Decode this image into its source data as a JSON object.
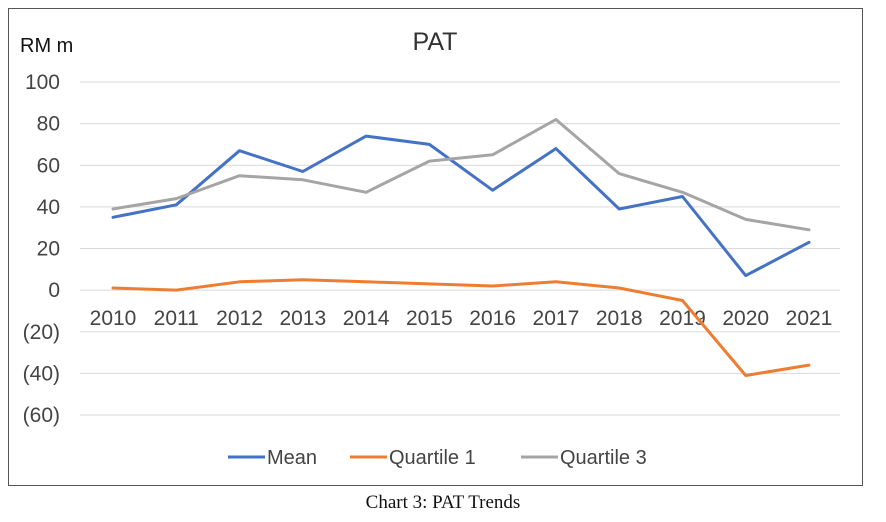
{
  "chart_data": {
    "type": "line",
    "title": "PAT",
    "ylabel": "RM m",
    "xlabel": "",
    "categories": [
      "2010",
      "2011",
      "2012",
      "2013",
      "2014",
      "2015",
      "2016",
      "2017",
      "2018",
      "2019",
      "2020",
      "2021"
    ],
    "ylim": [
      -60,
      100
    ],
    "yticks": [
      100,
      80,
      60,
      40,
      20,
      0,
      -20,
      -40,
      -60
    ],
    "ytick_labels": [
      "100",
      "80",
      "60",
      "40",
      "20",
      "0",
      "(20)",
      "(40)",
      "(60)"
    ],
    "negative_tick_color": "#e8141c",
    "grid": true,
    "legend": "bottom",
    "series": [
      {
        "name": "Mean",
        "color": "#4472c4",
        "values": [
          35,
          41,
          67,
          57,
          74,
          70,
          48,
          68,
          39,
          45,
          7,
          23
        ]
      },
      {
        "name": "Quartile 1",
        "color": "#ed7d31",
        "values": [
          1,
          0,
          4,
          5,
          4,
          3,
          2,
          4,
          1,
          -5,
          -41,
          -36
        ]
      },
      {
        "name": "Quartile 3",
        "color": "#a5a5a5",
        "values": [
          39,
          44,
          55,
          53,
          47,
          62,
          65,
          82,
          56,
          47,
          34,
          29
        ]
      }
    ]
  },
  "caption": "Chart 3: PAT Trends"
}
